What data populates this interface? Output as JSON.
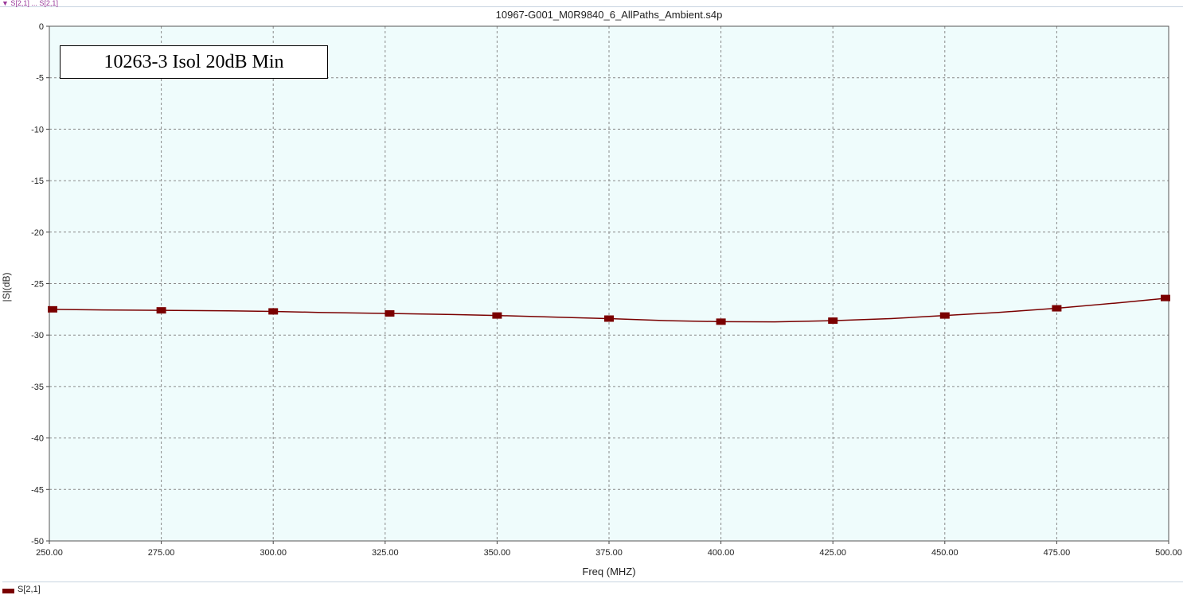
{
  "chart_data": {
    "type": "line",
    "title": "10967-G001_M0R9840_6_AllPaths_Ambient.s4p",
    "annotation": "10263-3 Isol 20dB Min",
    "top_marker": "▼ S[2,1] ... S[2,1]",
    "xlabel": "Freq (MHZ)",
    "ylabel": "|S|(dB)",
    "xlim": [
      250,
      500
    ],
    "ylim": [
      -50,
      0
    ],
    "x_ticks": [
      "250.00",
      "275.00",
      "300.00",
      "325.00",
      "350.00",
      "375.00",
      "400.00",
      "425.00",
      "450.00",
      "475.00",
      "500.00"
    ],
    "y_ticks": [
      "0",
      "-5",
      "-10",
      "-15",
      "-20",
      "-25",
      "-30",
      "-35",
      "-40",
      "-45",
      "-50"
    ],
    "grid": true,
    "legend_position": "bottom-left",
    "colors": {
      "plot_background": "#effcfc",
      "series": "#7a0000",
      "grid": "#8a8a8a"
    },
    "series": [
      {
        "name": "S[2,1]",
        "x": [
          250,
          260,
          275,
          290,
          300,
          310,
          325,
          340,
          350,
          362,
          375,
          388,
          400,
          412,
          425,
          438,
          450,
          462,
          475,
          488,
          500
        ],
        "y": [
          -27.5,
          -27.55,
          -27.6,
          -27.65,
          -27.7,
          -27.8,
          -27.9,
          -28.0,
          -28.1,
          -28.25,
          -28.4,
          -28.6,
          -28.7,
          -28.72,
          -28.6,
          -28.4,
          -28.1,
          -27.8,
          -27.4,
          -26.9,
          -26.4
        ],
        "markers_x": [
          250,
          275,
          300,
          326,
          350,
          375,
          400,
          425,
          450,
          475,
          500
        ],
        "markers_y": [
          -27.5,
          -27.6,
          -27.7,
          -27.9,
          -28.1,
          -28.4,
          -28.7,
          -28.6,
          -28.1,
          -27.4,
          -26.4
        ]
      }
    ]
  }
}
